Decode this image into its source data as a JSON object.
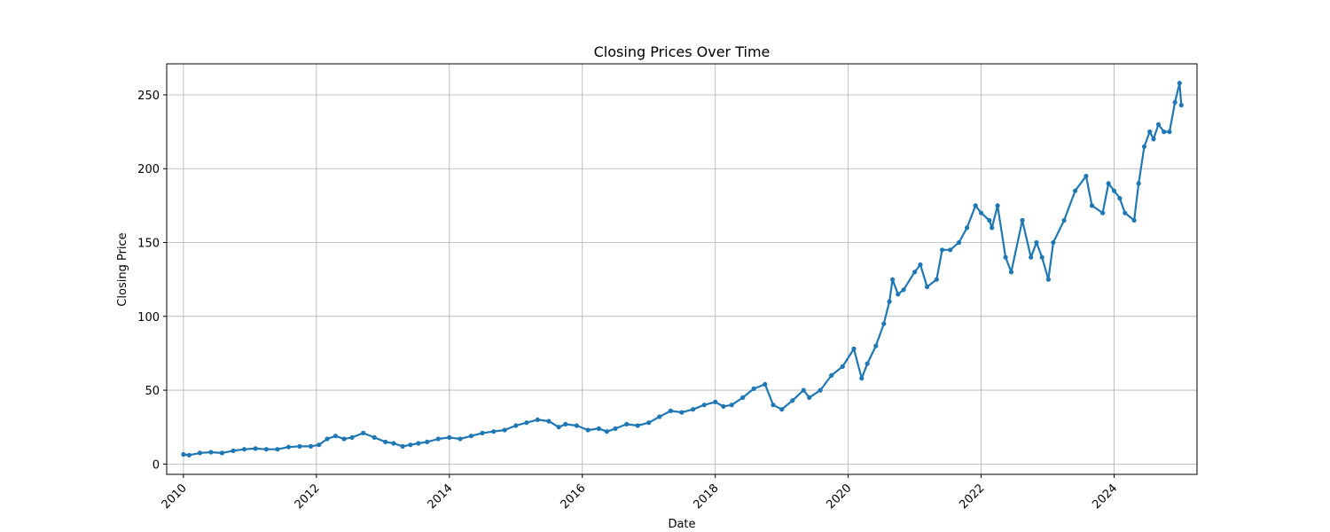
{
  "chart_data": {
    "type": "line",
    "title": "Closing Prices Over Time",
    "xlabel": "Date",
    "ylabel": "Closing Price",
    "x_ticks": [
      "2010",
      "2012",
      "2014",
      "2016",
      "2018",
      "2020",
      "2022",
      "2024"
    ],
    "y_ticks": [
      "0",
      "50",
      "100",
      "150",
      "200",
      "250"
    ],
    "xlim": [
      "2009-10-01",
      "2025-04-01"
    ],
    "ylim": [
      -7,
      271
    ],
    "grid": true,
    "legend": "none",
    "markers": true,
    "series": [
      {
        "color": "#1f77b4",
        "x": [
          "2010-01-01",
          "2010-02-01",
          "2010-04-01",
          "2010-06-01",
          "2010-08-01",
          "2010-10-01",
          "2010-12-01",
          "2011-02-01",
          "2011-04-01",
          "2011-06-01",
          "2011-08-01",
          "2011-10-01",
          "2011-12-01",
          "2012-01-15",
          "2012-03-01",
          "2012-04-15",
          "2012-06-01",
          "2012-07-15",
          "2012-09-15",
          "2012-11-15",
          "2013-01-15",
          "2013-03-01",
          "2013-04-20",
          "2013-06-01",
          "2013-07-15",
          "2013-09-01",
          "2013-11-01",
          "2014-01-01",
          "2014-03-01",
          "2014-05-01",
          "2014-07-01",
          "2014-09-01",
          "2014-11-01",
          "2015-01-01",
          "2015-03-01",
          "2015-05-01",
          "2015-07-01",
          "2015-08-25",
          "2015-10-01",
          "2015-12-01",
          "2016-02-01",
          "2016-04-01",
          "2016-05-15",
          "2016-07-01",
          "2016-09-01",
          "2016-11-01",
          "2017-01-01",
          "2017-03-01",
          "2017-05-01",
          "2017-07-01",
          "2017-09-01",
          "2017-11-01",
          "2018-01-01",
          "2018-02-15",
          "2018-04-01",
          "2018-06-01",
          "2018-08-01",
          "2018-10-01",
          "2018-11-15",
          "2019-01-01",
          "2019-03-01",
          "2019-05-01",
          "2019-06-01",
          "2019-08-01",
          "2019-10-01",
          "2019-12-01",
          "2020-02-01",
          "2020-03-15",
          "2020-04-15",
          "2020-06-01",
          "2020-07-15",
          "2020-08-15",
          "2020-09-01",
          "2020-10-01",
          "2020-11-01",
          "2021-01-01",
          "2021-02-01",
          "2021-03-10",
          "2021-05-01",
          "2021-06-01",
          "2021-07-15",
          "2021-09-01",
          "2021-10-15",
          "2021-12-01",
          "2022-01-01",
          "2022-02-15",
          "2022-03-01",
          "2022-04-01",
          "2022-05-15",
          "2022-06-15",
          "2022-08-15",
          "2022-10-01",
          "2022-11-01",
          "2022-12-01",
          "2023-01-05",
          "2023-02-01",
          "2023-04-01",
          "2023-06-01",
          "2023-07-31",
          "2023-09-01",
          "2023-10-30",
          "2023-12-01",
          "2024-01-01",
          "2024-02-01",
          "2024-03-01",
          "2024-04-20",
          "2024-05-15",
          "2024-06-15",
          "2024-07-15",
          "2024-08-05",
          "2024-09-01",
          "2024-10-01",
          "2024-11-01",
          "2024-12-01",
          "2024-12-26",
          "2025-01-05"
        ],
        "y": [
          6.5,
          6,
          7.5,
          8,
          7.5,
          9,
          10,
          10.5,
          10,
          10,
          11.5,
          12,
          12,
          13,
          17,
          19,
          17,
          18,
          21,
          18,
          15,
          14,
          12,
          13,
          14,
          15,
          17,
          18,
          17,
          19,
          21,
          22,
          23,
          26,
          28,
          30,
          29,
          25,
          27,
          26,
          23,
          24,
          22,
          24,
          27,
          26,
          28,
          32,
          36,
          35,
          37,
          40,
          42,
          39,
          40,
          45,
          51,
          54,
          40,
          37,
          43,
          50,
          45,
          50,
          60,
          66,
          78,
          58,
          68,
          80,
          95,
          110,
          125,
          115,
          118,
          130,
          135,
          120,
          125,
          145,
          145,
          150,
          160,
          175,
          170,
          165,
          160,
          175,
          140,
          130,
          165,
          140,
          150,
          140,
          125,
          150,
          165,
          185,
          195,
          175,
          170,
          190,
          185,
          180,
          170,
          165,
          190,
          215,
          225,
          220,
          230,
          225,
          225,
          245,
          258,
          243
        ]
      }
    ]
  }
}
